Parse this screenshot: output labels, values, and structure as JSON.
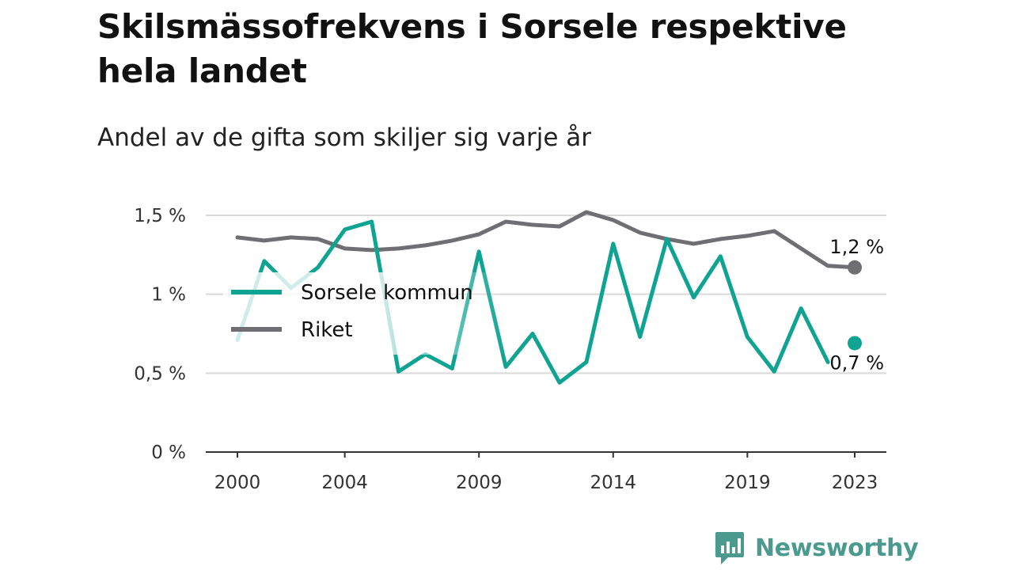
{
  "title": "Skilsmässofrekvens i Sorsele respektive hela landet",
  "subtitle": "Andel av de gifta som skiljer sig varje år",
  "brand": {
    "name": "Newsworthy",
    "icon": "newsworthy-logo-icon",
    "color": "#4a9a8e"
  },
  "chart_data": {
    "type": "line",
    "x": [
      2000,
      2001,
      2002,
      2003,
      2004,
      2005,
      2006,
      2007,
      2008,
      2009,
      2010,
      2011,
      2012,
      2013,
      2014,
      2015,
      2016,
      2017,
      2018,
      2019,
      2020,
      2021,
      2022,
      2023
    ],
    "x_ticks": [
      2000,
      2004,
      2009,
      2014,
      2019,
      2023
    ],
    "x_tick_labels": [
      "2000",
      "2004",
      "2009",
      "2014",
      "2019",
      "2023"
    ],
    "ylim": [
      0,
      1.5
    ],
    "y_ticks": [
      0,
      0.5,
      1,
      1.5
    ],
    "y_tick_labels": [
      "0 %",
      "0,5 %",
      "1 %",
      "1,5 %"
    ],
    "grid": true,
    "legend_position": "left",
    "series": [
      {
        "name": "Sorsele kommun",
        "color": "#0fa392",
        "values": [
          0.71,
          1.21,
          1.04,
          1.17,
          1.41,
          1.46,
          0.51,
          0.62,
          0.53,
          1.27,
          0.54,
          0.75,
          0.44,
          0.57,
          1.32,
          0.73,
          1.35,
          0.98,
          1.24,
          0.73,
          0.51,
          0.91,
          0.57,
          0.69
        ],
        "end_label": "0,7 %"
      },
      {
        "name": "Riket",
        "color": "#6e6e73",
        "values": [
          1.36,
          1.34,
          1.36,
          1.35,
          1.29,
          1.28,
          1.29,
          1.31,
          1.34,
          1.38,
          1.46,
          1.44,
          1.43,
          1.52,
          1.47,
          1.39,
          1.35,
          1.32,
          1.35,
          1.37,
          1.4,
          1.29,
          1.18,
          1.17
        ],
        "end_label": "1,2 %"
      }
    ]
  }
}
